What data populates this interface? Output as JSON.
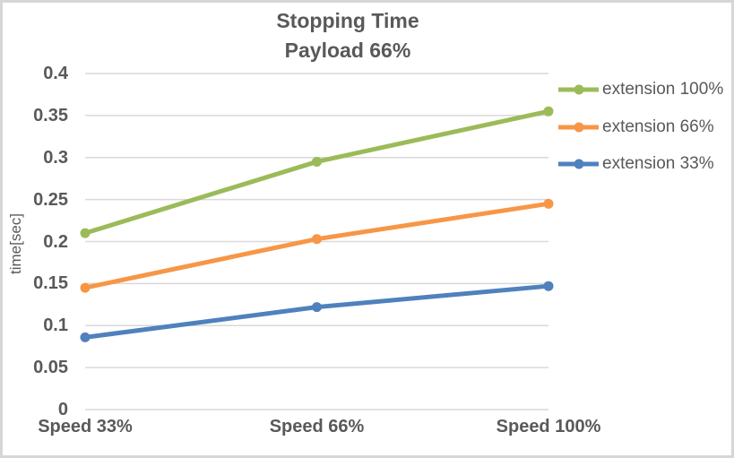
{
  "chart": {
    "title_line1": "Stopping Time",
    "title_line2": "Payload 66%"
  },
  "chart_data": {
    "type": "line",
    "title": "Stopping Time — Payload 66%",
    "categories": [
      "Speed 33%",
      "Speed 66%",
      "Speed 100%"
    ],
    "series": [
      {
        "name": "extension 100%",
        "color": "#9BBB59",
        "values": [
          0.21,
          0.295,
          0.355
        ]
      },
      {
        "name": "extension 66%",
        "color": "#F79646",
        "values": [
          0.145,
          0.203,
          0.245
        ]
      },
      {
        "name": "extension 33%",
        "color": "#4F81BD",
        "values": [
          0.086,
          0.122,
          0.147
        ]
      }
    ],
    "xlabel": "",
    "ylabel": "time[sec]",
    "ylim": [
      0,
      0.4
    ],
    "y_ticks": [
      {
        "value": 0,
        "label": "0"
      },
      {
        "value": 0.05,
        "label": "0.05"
      },
      {
        "value": 0.1,
        "label": "0.1"
      },
      {
        "value": 0.15,
        "label": "0.15"
      },
      {
        "value": 0.2,
        "label": "0.2"
      },
      {
        "value": 0.25,
        "label": "0.25"
      },
      {
        "value": 0.3,
        "label": "0.3"
      },
      {
        "value": 0.35,
        "label": "0.35"
      },
      {
        "value": 0.4,
        "label": "0.4"
      }
    ],
    "grid": true,
    "legend_position": "right",
    "theme": {
      "text_color": "#595959",
      "gridline_color": "#D9D9D9",
      "frame_border_color": "#D6D6D6",
      "background": "#FFFFFF"
    }
  }
}
